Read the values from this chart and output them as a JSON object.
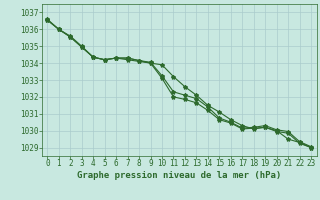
{
  "x": [
    0,
    1,
    2,
    3,
    4,
    5,
    6,
    7,
    8,
    9,
    10,
    11,
    12,
    13,
    14,
    15,
    16,
    17,
    18,
    19,
    20,
    21,
    22,
    23
  ],
  "line1": [
    1036.6,
    1036.0,
    1035.6,
    1035.0,
    1034.35,
    1034.2,
    1034.3,
    1034.2,
    1034.1,
    1034.0,
    1033.9,
    1033.2,
    1032.6,
    1032.1,
    1031.5,
    1031.1,
    1030.65,
    1030.3,
    1030.1,
    1030.2,
    1030.0,
    1029.5,
    1029.3,
    1029.0
  ],
  "line2": [
    1036.55,
    1036.0,
    1035.55,
    1034.95,
    1034.35,
    1034.2,
    1034.3,
    1034.3,
    1034.15,
    1034.05,
    1033.25,
    1032.3,
    1032.1,
    1031.9,
    1031.4,
    1030.75,
    1030.5,
    1030.15,
    1030.2,
    1030.3,
    1030.05,
    1029.95,
    1029.35,
    1029.05
  ],
  "line3": [
    1036.55,
    1036.0,
    1035.55,
    1034.95,
    1034.35,
    1034.2,
    1034.3,
    1034.3,
    1034.15,
    1034.0,
    1033.1,
    1032.0,
    1031.85,
    1031.65,
    1031.2,
    1030.65,
    1030.45,
    1030.1,
    1030.15,
    1030.2,
    1029.95,
    1029.85,
    1029.25,
    1029.0
  ],
  "ylim": [
    1028.5,
    1037.5
  ],
  "yticks": [
    1029,
    1030,
    1031,
    1032,
    1033,
    1034,
    1035,
    1036,
    1037
  ],
  "xlim": [
    -0.5,
    23.5
  ],
  "xticks": [
    0,
    1,
    2,
    3,
    4,
    5,
    6,
    7,
    8,
    9,
    10,
    11,
    12,
    13,
    14,
    15,
    16,
    17,
    18,
    19,
    20,
    21,
    22,
    23
  ],
  "xlabel": "Graphe pression niveau de la mer (hPa)",
  "line_color": "#2d6a2d",
  "bg_color": "#c8e8e0",
  "grid_color": "#aacccc",
  "marker": "*",
  "linewidth": 0.8,
  "markersize": 3.0,
  "tick_fontsize": 5.5,
  "xlabel_fontsize": 6.5
}
